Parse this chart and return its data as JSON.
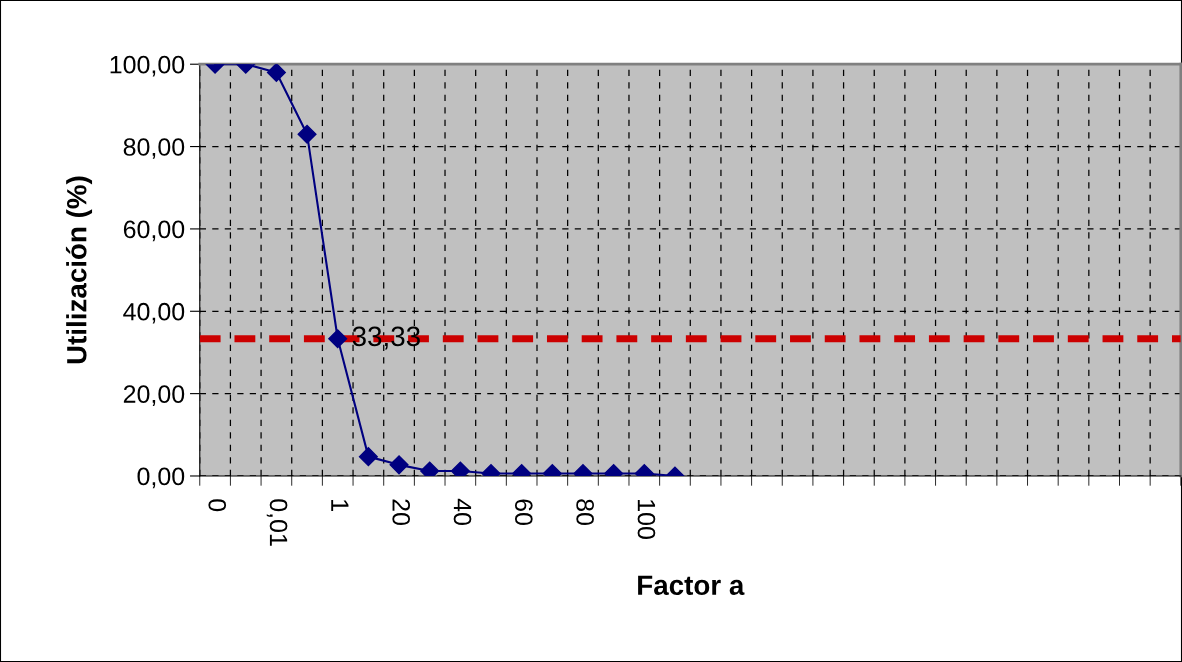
{
  "chart_data": {
    "type": "line",
    "xlabel": "Factor a",
    "ylabel": "Utilización (%)",
    "categories": [
      "0",
      null,
      "0,01",
      null,
      "1",
      null,
      "20",
      null,
      "40",
      null,
      "60",
      null,
      "80",
      null,
      "100",
      null,
      null,
      null,
      null,
      null,
      null,
      null,
      null,
      null,
      null,
      null,
      null,
      null,
      null,
      null,
      null,
      null
    ],
    "series": [
      {
        "color": "#000080",
        "values": [
          100,
          100,
          98,
          83,
          33.33,
          4.7,
          2.7,
          1.2,
          1.2,
          0.6,
          0.6,
          0.6,
          0.6,
          0.6,
          0.6,
          0,
          null,
          null,
          null,
          null,
          null,
          null,
          null,
          null,
          null,
          null,
          null,
          null,
          null,
          null,
          null,
          null
        ]
      }
    ],
    "ylim": [
      0,
      100
    ],
    "yticks": [
      {
        "value": 0,
        "label": "0,00"
      },
      {
        "value": 20,
        "label": "20,00"
      },
      {
        "value": 40,
        "label": "40,00"
      },
      {
        "value": 60,
        "label": "60,00"
      },
      {
        "value": 80,
        "label": "80,00"
      },
      {
        "value": 100,
        "label": "100,00"
      }
    ],
    "ref_lines": [
      {
        "axis": "y",
        "value": 33.33,
        "color": "#cc0000",
        "line_style": "dashed"
      }
    ],
    "annotations": [
      {
        "text": "33,33",
        "x": "1",
        "y": 33.33
      }
    ],
    "grid": true,
    "marker": "diamond",
    "line_style": "solid",
    "legend": false
  }
}
